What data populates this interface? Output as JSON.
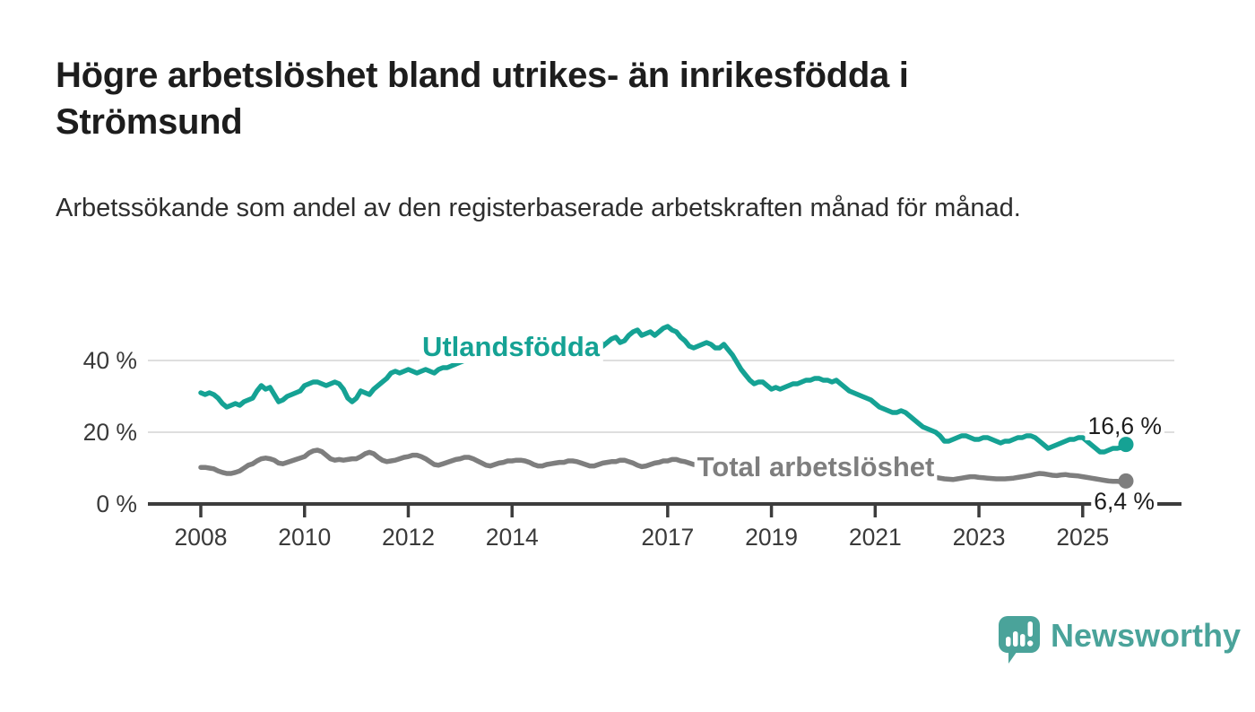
{
  "header": {
    "title": "Högre arbetslöshet bland utrikes- än inrikesfödda i Strömsund",
    "subtitle": "Arbetssökande som andel av den registerbaserade arbetskraften månad för månad."
  },
  "colors": {
    "accent_teal": "#15a294",
    "series_gray": "#7e7e7e",
    "logo_teal": "#4aa39a",
    "grid": "#dedede",
    "axis": "#3c3c3c",
    "text_dark": "#1d1d1d",
    "tick_label": "#3a3a3a"
  },
  "branding": {
    "logo_text": "Newsworthy",
    "logo_icon": "speech-bubble-bar-chart"
  },
  "chart_data": {
    "type": "line",
    "title": "Högre arbetslöshet bland utrikes- än inrikesfödda i Strömsund",
    "subtitle": "Arbetssökande som andel av den registerbaserade arbetskraften månad för månad.",
    "xlabel": "",
    "ylabel": "",
    "grid": "horizontal",
    "ylim": [
      0,
      52
    ],
    "x_start_year": 2008,
    "frequency": "monthly",
    "x_end": "2025-11",
    "y_ticks": [
      {
        "value": 0,
        "label": "0 %"
      },
      {
        "value": 20,
        "label": "20 %"
      },
      {
        "value": 40,
        "label": "40 %"
      }
    ],
    "x_ticks": [
      {
        "year": 2008,
        "label": "2008"
      },
      {
        "year": 2010,
        "label": "2010"
      },
      {
        "year": 2012,
        "label": "2012"
      },
      {
        "year": 2014,
        "label": "2014"
      },
      {
        "year": 2017,
        "label": "2017"
      },
      {
        "year": 2019,
        "label": "2019"
      },
      {
        "year": 2021,
        "label": "2021"
      },
      {
        "year": 2023,
        "label": "2023"
      },
      {
        "year": 2025,
        "label": "2025"
      }
    ],
    "series": [
      {
        "name": "Utlandsfödda",
        "color": "#15a294",
        "end_value": 16.6,
        "end_label": "16,6 %",
        "values": [
          31.0,
          30.5,
          31.0,
          30.5,
          29.5,
          28.0,
          27.0,
          27.5,
          28.0,
          27.5,
          28.5,
          29.0,
          29.5,
          31.5,
          33.0,
          32.0,
          32.5,
          30.5,
          28.5,
          29.0,
          30.0,
          30.5,
          31.0,
          31.5,
          33.0,
          33.5,
          34.0,
          34.0,
          33.5,
          33.0,
          33.5,
          34.0,
          33.5,
          32.0,
          29.5,
          28.5,
          29.5,
          31.5,
          31.0,
          30.5,
          32.0,
          33.0,
          34.0,
          35.0,
          36.5,
          37.0,
          36.5,
          37.0,
          37.5,
          37.0,
          36.5,
          37.0,
          37.5,
          37.0,
          36.5,
          37.5,
          38.0,
          38.0,
          38.5,
          39.0,
          39.5,
          40.0,
          40.5,
          40.0,
          40.5,
          40.5,
          40.0,
          40.5,
          41.0,
          40.5,
          41.0,
          41.0,
          41.0,
          41.5,
          41.0,
          41.5,
          42.0,
          41.5,
          42.0,
          42.5,
          42.0,
          42.5,
          43.0,
          43.0,
          43.5,
          44.0,
          44.5,
          45.0,
          45.5,
          46.0,
          46.5,
          47.5,
          46.5,
          44.0,
          45.0,
          46.0,
          46.5,
          45.0,
          45.5,
          47.0,
          48.0,
          48.5,
          47.0,
          47.5,
          48.0,
          47.0,
          48.0,
          49.0,
          49.5,
          48.5,
          48.0,
          46.5,
          45.5,
          44.0,
          43.5,
          44.0,
          44.5,
          45.0,
          44.5,
          43.5,
          43.5,
          44.5,
          43.0,
          41.5,
          39.5,
          37.5,
          36.0,
          34.5,
          33.5,
          34.0,
          34.0,
          33.0,
          32.0,
          32.5,
          32.0,
          32.5,
          33.0,
          33.5,
          33.5,
          34.0,
          34.5,
          34.5,
          35.0,
          35.0,
          34.5,
          34.5,
          34.0,
          34.5,
          33.5,
          32.5,
          31.5,
          31.0,
          30.5,
          30.0,
          29.5,
          29.0,
          28.0,
          27.0,
          26.5,
          26.0,
          25.5,
          25.5,
          26.0,
          25.5,
          24.5,
          23.5,
          22.5,
          21.5,
          21.0,
          20.5,
          20.0,
          19.0,
          17.5,
          17.5,
          18.0,
          18.5,
          19.0,
          19.0,
          18.5,
          18.0,
          18.0,
          18.5,
          18.5,
          18.0,
          17.5,
          17.0,
          17.5,
          17.5,
          18.0,
          18.5,
          18.5,
          19.0,
          19.0,
          18.5,
          17.5,
          16.5,
          15.5,
          16.0,
          16.5,
          17.0,
          17.5,
          18.0,
          18.0,
          18.5,
          18.5,
          17.5,
          16.5,
          15.5,
          14.5,
          14.5,
          15.0,
          15.5,
          15.5,
          15.8,
          16.6
        ]
      },
      {
        "name": "Total arbetslöshet",
        "color": "#7e7e7e",
        "end_value": 6.4,
        "end_label": "6,4 %",
        "values": [
          10.2,
          10.2,
          10.0,
          9.8,
          9.2,
          8.8,
          8.5,
          8.5,
          8.8,
          9.2,
          10.0,
          10.8,
          11.2,
          12.0,
          12.6,
          12.8,
          12.6,
          12.2,
          11.4,
          11.2,
          11.6,
          12.0,
          12.4,
          12.8,
          13.2,
          14.2,
          14.8,
          15.0,
          14.6,
          13.6,
          12.6,
          12.2,
          12.4,
          12.2,
          12.4,
          12.6,
          12.6,
          13.2,
          14.0,
          14.4,
          14.0,
          13.0,
          12.2,
          11.8,
          12.0,
          12.2,
          12.6,
          13.0,
          13.2,
          13.6,
          13.6,
          13.2,
          12.6,
          11.8,
          11.0,
          10.8,
          11.2,
          11.6,
          12.0,
          12.4,
          12.6,
          13.0,
          13.0,
          12.6,
          12.0,
          11.4,
          10.8,
          10.6,
          11.0,
          11.4,
          11.6,
          12.0,
          12.0,
          12.2,
          12.2,
          12.0,
          11.6,
          11.0,
          10.6,
          10.6,
          11.0,
          11.2,
          11.4,
          11.6,
          11.6,
          12.0,
          12.0,
          11.8,
          11.4,
          11.0,
          10.6,
          10.6,
          11.0,
          11.4,
          11.6,
          11.8,
          11.8,
          12.2,
          12.2,
          11.8,
          11.4,
          10.8,
          10.4,
          10.6,
          11.0,
          11.4,
          11.6,
          12.0,
          12.0,
          12.4,
          12.4,
          12.0,
          11.8,
          11.4,
          11.0,
          11.0,
          11.4,
          11.6,
          11.6,
          11.6,
          11.4,
          11.4,
          11.2,
          10.8,
          10.4,
          10.0,
          9.6,
          9.6,
          9.8,
          10.0,
          10.2,
          10.4,
          10.4,
          10.6,
          10.6,
          10.4,
          10.0,
          9.6,
          9.4,
          9.4,
          9.6,
          9.8,
          10.0,
          10.2,
          10.2,
          10.4,
          10.8,
          11.2,
          11.0,
          10.6,
          10.2,
          10.0,
          9.8,
          9.6,
          9.4,
          9.2,
          9.0,
          9.0,
          8.8,
          8.6,
          8.4,
          8.2,
          8.0,
          8.0,
          8.0,
          8.0,
          8.0,
          8.0,
          7.8,
          7.6,
          7.4,
          7.2,
          7.0,
          6.9,
          6.8,
          7.0,
          7.2,
          7.4,
          7.6,
          7.6,
          7.4,
          7.3,
          7.2,
          7.1,
          7.0,
          7.0,
          7.0,
          7.1,
          7.2,
          7.4,
          7.6,
          7.8,
          8.0,
          8.3,
          8.5,
          8.4,
          8.2,
          8.0,
          7.9,
          8.1,
          8.2,
          8.0,
          7.9,
          7.8,
          7.6,
          7.4,
          7.2,
          7.0,
          6.8,
          6.6,
          6.4,
          6.3,
          6.3,
          6.2,
          6.4
        ]
      }
    ]
  }
}
